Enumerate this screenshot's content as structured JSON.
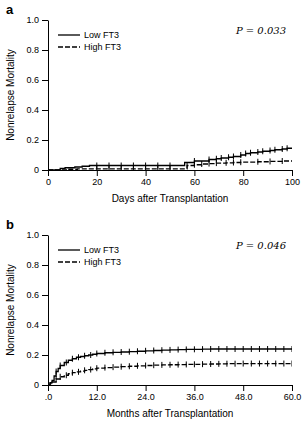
{
  "chart_data": [
    {
      "type": "step",
      "title": "a",
      "x_label": "Days after Transplantation",
      "y_label": "Nonrelapse Mortality",
      "annotations": [
        "P = 0.033"
      ],
      "xlim": [
        0,
        100
      ],
      "ylim": [
        0.0,
        1.0
      ],
      "xticks": [
        0,
        20,
        40,
        60,
        80,
        100
      ],
      "yticks": [
        0,
        0.2,
        0.4,
        0.6,
        0.8,
        {
          "value": 1.0,
          "label": "1.0"
        }
      ],
      "legend": "upper left",
      "series": [
        {
          "name": "Low FT3",
          "color": "#000000",
          "line_style": "solid",
          "marker": "|",
          "x": [
            0,
            5,
            7,
            11,
            14,
            17,
            56,
            60,
            66,
            69,
            71,
            74,
            76,
            79,
            81,
            83,
            86,
            88,
            91,
            93,
            96,
            98,
            100
          ],
          "values": [
            0.0,
            0.01,
            0.015,
            0.02,
            0.025,
            0.03,
            0.05,
            0.06,
            0.07,
            0.075,
            0.08,
            0.085,
            0.09,
            0.1,
            0.11,
            0.115,
            0.12,
            0.125,
            0.13,
            0.135,
            0.14,
            0.145,
            0.145
          ],
          "censor_x": [
            20,
            25,
            30,
            35,
            40,
            45,
            50,
            60,
            66,
            69,
            71,
            74,
            76,
            79,
            81,
            83,
            86,
            88,
            91,
            93,
            96,
            98
          ],
          "censor_values": [
            0.03,
            0.03,
            0.03,
            0.03,
            0.03,
            0.03,
            0.03,
            0.06,
            0.07,
            0.075,
            0.08,
            0.085,
            0.09,
            0.1,
            0.11,
            0.115,
            0.12,
            0.125,
            0.13,
            0.135,
            0.14,
            0.145
          ]
        },
        {
          "name": "High FT3",
          "color": "#000000",
          "line_style": "dashed",
          "marker": "|",
          "x": [
            0,
            8,
            12,
            57,
            60,
            63,
            66,
            69,
            73,
            76,
            79,
            86,
            91,
            96,
            100
          ],
          "values": [
            0.0,
            0.005,
            0.008,
            0.03,
            0.035,
            0.04,
            0.043,
            0.046,
            0.048,
            0.05,
            0.052,
            0.055,
            0.057,
            0.06,
            0.06
          ],
          "censor_x": [
            20,
            25,
            30,
            35,
            40,
            45,
            50,
            57,
            60,
            63,
            66,
            69,
            73,
            76,
            79,
            86,
            91,
            96
          ],
          "censor_values": [
            0.008,
            0.008,
            0.008,
            0.008,
            0.008,
            0.008,
            0.008,
            0.03,
            0.035,
            0.04,
            0.043,
            0.046,
            0.048,
            0.05,
            0.052,
            0.055,
            0.057,
            0.06
          ]
        }
      ]
    },
    {
      "type": "step",
      "title": "b",
      "x_label": "Months after Transplantation",
      "y_label": "Nonrelapse Mortality",
      "annotations": [
        "P = 0.046"
      ],
      "xlim": [
        0,
        60
      ],
      "ylim": [
        0.0,
        1.0
      ],
      "xticks": [
        {
          "value": 0,
          "label": ".0"
        },
        {
          "value": 12.0,
          "label": "12.0"
        },
        {
          "value": 24.0,
          "label": "24.0"
        },
        {
          "value": 36.0,
          "label": "36.0"
        },
        {
          "value": 48.0,
          "label": "48.0"
        },
        {
          "value": 60.0,
          "label": "60.0"
        }
      ],
      "yticks": [
        0,
        0.2,
        0.4,
        0.6,
        0.8,
        {
          "value": 1.0,
          "label": "1.0"
        }
      ],
      "legend": "upper left",
      "series": [
        {
          "name": "Low FT3",
          "color": "#000000",
          "line_style": "solid",
          "marker": "|",
          "x": [
            0,
            0.5,
            1.0,
            1.5,
            2.0,
            2.5,
            3.0,
            4.0,
            5.0,
            6.0,
            7.0,
            8.0,
            9.0,
            10.0,
            11.0,
            12.0,
            14.0,
            16.0,
            18.0,
            20.0,
            22.0,
            24.0,
            26.0,
            28.0,
            30.0,
            32.0,
            34.0,
            36.0,
            38.0,
            40.0,
            42.0,
            44.0,
            46.0,
            48.0,
            50.0,
            52.0,
            54.0,
            56.0,
            58.0,
            60.0
          ],
          "values": [
            0.0,
            0.015,
            0.03,
            0.06,
            0.09,
            0.11,
            0.13,
            0.15,
            0.165,
            0.175,
            0.185,
            0.19,
            0.195,
            0.2,
            0.205,
            0.21,
            0.215,
            0.218,
            0.22,
            0.222,
            0.225,
            0.228,
            0.23,
            0.232,
            0.234,
            0.236,
            0.237,
            0.238,
            0.239,
            0.24,
            0.24,
            0.24,
            0.24,
            0.24,
            0.24,
            0.24,
            0.24,
            0.24,
            0.24,
            0.24
          ],
          "censor_x": [
            2.0,
            3.0,
            4.5,
            6.0,
            7.5,
            9.0,
            10.5,
            12.0,
            14.0,
            16.0,
            18.0,
            20.0,
            22.0,
            24.0,
            26.0,
            28.0,
            30.0,
            32.0,
            34.0,
            36.0,
            38.0,
            40.0,
            42.0,
            44.0,
            46.0,
            48.0,
            50.0,
            52.0,
            54.0,
            56.0,
            58.0,
            60.0
          ],
          "censor_values": [
            0.09,
            0.13,
            0.15,
            0.175,
            0.185,
            0.195,
            0.2,
            0.21,
            0.215,
            0.218,
            0.22,
            0.222,
            0.225,
            0.228,
            0.23,
            0.232,
            0.234,
            0.236,
            0.237,
            0.238,
            0.239,
            0.24,
            0.24,
            0.24,
            0.24,
            0.24,
            0.24,
            0.24,
            0.24,
            0.24,
            0.24,
            0.24
          ]
        },
        {
          "name": "High FT3",
          "color": "#000000",
          "line_style": "dashed",
          "marker": "|",
          "x": [
            0,
            0.5,
            1.0,
            2.0,
            3.0,
            4.0,
            5.0,
            6.0,
            7.0,
            8.0,
            9.0,
            10.0,
            11.0,
            12.0,
            14.0,
            16.0,
            18.0,
            20.0,
            22.0,
            24.0,
            26.0,
            28.0,
            30.0,
            32.0,
            34.0,
            36.0,
            38.0,
            40.0,
            42.0,
            44.0,
            46.0,
            48.0,
            50.0,
            52.0,
            54.0,
            56.0,
            58.0,
            60.0
          ],
          "values": [
            0.0,
            0.01,
            0.02,
            0.04,
            0.055,
            0.065,
            0.075,
            0.082,
            0.088,
            0.093,
            0.098,
            0.103,
            0.108,
            0.112,
            0.116,
            0.119,
            0.122,
            0.125,
            0.128,
            0.13,
            0.132,
            0.134,
            0.135,
            0.136,
            0.137,
            0.138,
            0.139,
            0.14,
            0.141,
            0.142,
            0.142,
            0.143,
            0.143,
            0.143,
            0.143,
            0.143,
            0.143,
            0.143
          ],
          "censor_x": [
            2.0,
            3.0,
            4.5,
            6.0,
            7.5,
            9.0,
            10.5,
            12.0,
            14.0,
            16.0,
            18.0,
            20.0,
            22.0,
            24.0,
            26.0,
            28.0,
            30.0,
            32.0,
            34.0,
            36.0,
            38.0,
            40.0,
            42.0,
            44.0,
            46.0,
            48.0,
            50.0,
            52.0,
            54.0,
            56.0,
            58.0,
            60.0
          ],
          "censor_values": [
            0.04,
            0.055,
            0.065,
            0.082,
            0.088,
            0.098,
            0.103,
            0.112,
            0.116,
            0.119,
            0.122,
            0.125,
            0.128,
            0.13,
            0.132,
            0.134,
            0.135,
            0.136,
            0.137,
            0.138,
            0.139,
            0.14,
            0.141,
            0.142,
            0.142,
            0.143,
            0.143,
            0.143,
            0.143,
            0.143,
            0.143,
            0.143
          ]
        }
      ]
    }
  ]
}
